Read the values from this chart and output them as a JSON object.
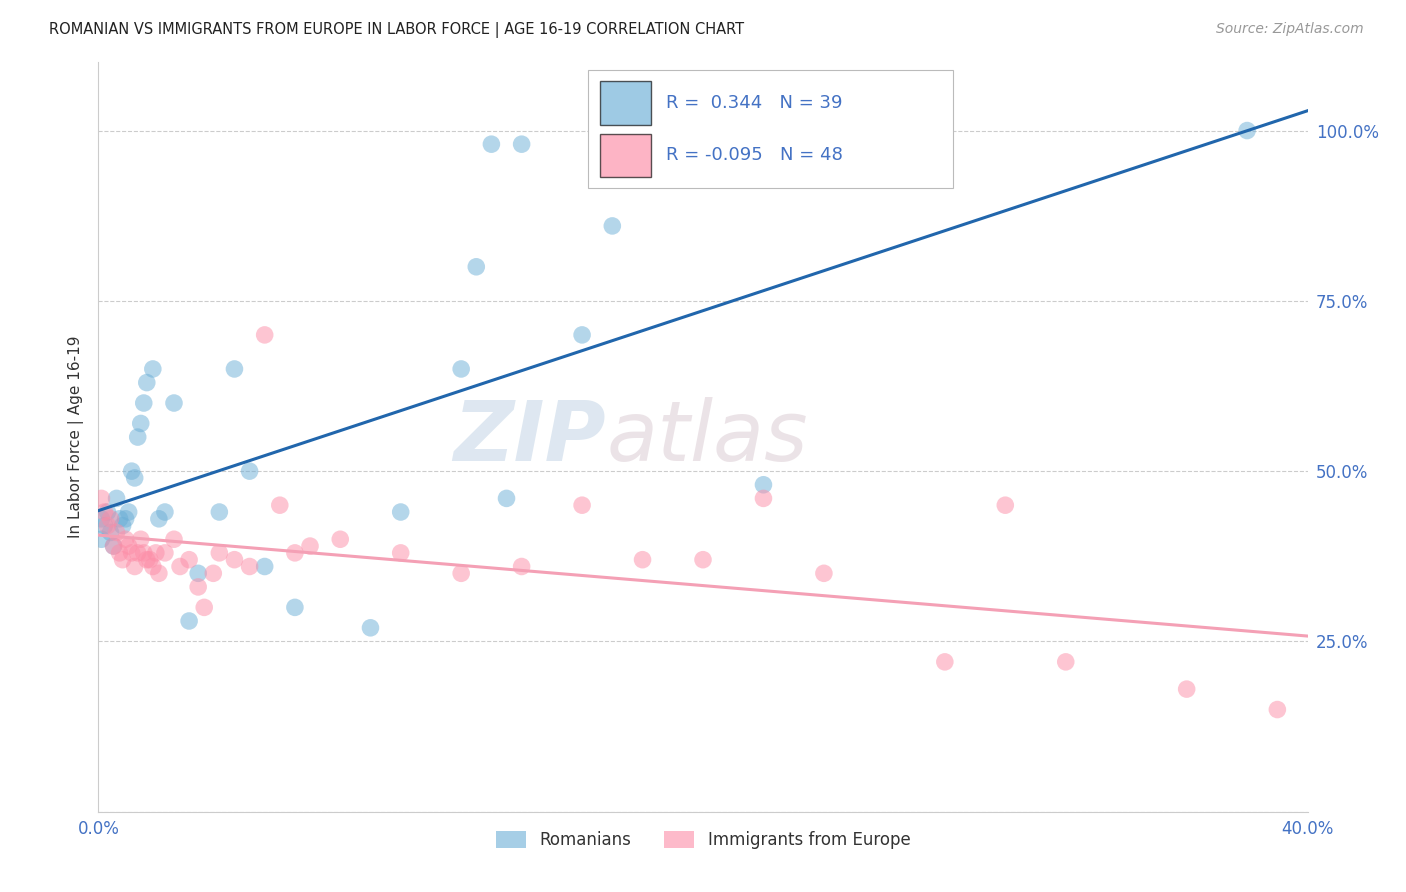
{
  "title": "ROMANIAN VS IMMIGRANTS FROM EUROPE IN LABOR FORCE | AGE 16-19 CORRELATION CHART",
  "source": "Source: ZipAtlas.com",
  "ylabel": "In Labor Force | Age 16-19",
  "xlabel_ticks": [
    "0.0%",
    "",
    "",
    "",
    "40.0%"
  ],
  "ylabel_ticks_right": [
    "",
    "25.0%",
    "50.0%",
    "75.0%",
    "100.0%"
  ],
  "xlim": [
    0.0,
    0.4
  ],
  "ylim": [
    0.0,
    1.1
  ],
  "blue_R": 0.344,
  "blue_N": 39,
  "pink_R": -0.095,
  "pink_N": 48,
  "blue_color": "#6baed6",
  "pink_color": "#fc8da7",
  "blue_line_color": "#2166ac",
  "pink_line_color": "#f4a0b5",
  "watermark_zip": "ZIP",
  "watermark_atlas": "atlas",
  "legend_label_blue": "Romanians",
  "legend_label_pink": "Immigrants from Europe",
  "blue_x": [
    0.001,
    0.001,
    0.002,
    0.003,
    0.004,
    0.005,
    0.006,
    0.007,
    0.008,
    0.009,
    0.01,
    0.011,
    0.012,
    0.013,
    0.014,
    0.015,
    0.016,
    0.018,
    0.02,
    0.022,
    0.025,
    0.03,
    0.033,
    0.04,
    0.045,
    0.05,
    0.055,
    0.065,
    0.09,
    0.1,
    0.12,
    0.13,
    0.14,
    0.16,
    0.17,
    0.22,
    0.125,
    0.135,
    0.38
  ],
  "blue_y": [
    0.43,
    0.4,
    0.42,
    0.44,
    0.41,
    0.39,
    0.46,
    0.43,
    0.42,
    0.43,
    0.44,
    0.5,
    0.49,
    0.55,
    0.57,
    0.6,
    0.63,
    0.65,
    0.43,
    0.44,
    0.6,
    0.28,
    0.35,
    0.44,
    0.65,
    0.5,
    0.36,
    0.3,
    0.27,
    0.44,
    0.65,
    0.98,
    0.98,
    0.7,
    0.86,
    0.48,
    0.8,
    0.46,
    1.0
  ],
  "pink_x": [
    0.001,
    0.002,
    0.003,
    0.004,
    0.005,
    0.006,
    0.007,
    0.008,
    0.009,
    0.01,
    0.011,
    0.012,
    0.013,
    0.014,
    0.015,
    0.016,
    0.017,
    0.018,
    0.019,
    0.02,
    0.022,
    0.025,
    0.027,
    0.03,
    0.033,
    0.035,
    0.038,
    0.04,
    0.045,
    0.05,
    0.055,
    0.06,
    0.065,
    0.07,
    0.08,
    0.1,
    0.12,
    0.14,
    0.16,
    0.18,
    0.2,
    0.22,
    0.24,
    0.28,
    0.3,
    0.32,
    0.36,
    0.39
  ],
  "pink_y": [
    0.46,
    0.44,
    0.42,
    0.43,
    0.39,
    0.41,
    0.38,
    0.37,
    0.4,
    0.39,
    0.38,
    0.36,
    0.38,
    0.4,
    0.38,
    0.37,
    0.37,
    0.36,
    0.38,
    0.35,
    0.38,
    0.4,
    0.36,
    0.37,
    0.33,
    0.3,
    0.35,
    0.38,
    0.37,
    0.36,
    0.7,
    0.45,
    0.38,
    0.39,
    0.4,
    0.38,
    0.35,
    0.36,
    0.45,
    0.37,
    0.37,
    0.46,
    0.35,
    0.22,
    0.45,
    0.22,
    0.18,
    0.15
  ]
}
